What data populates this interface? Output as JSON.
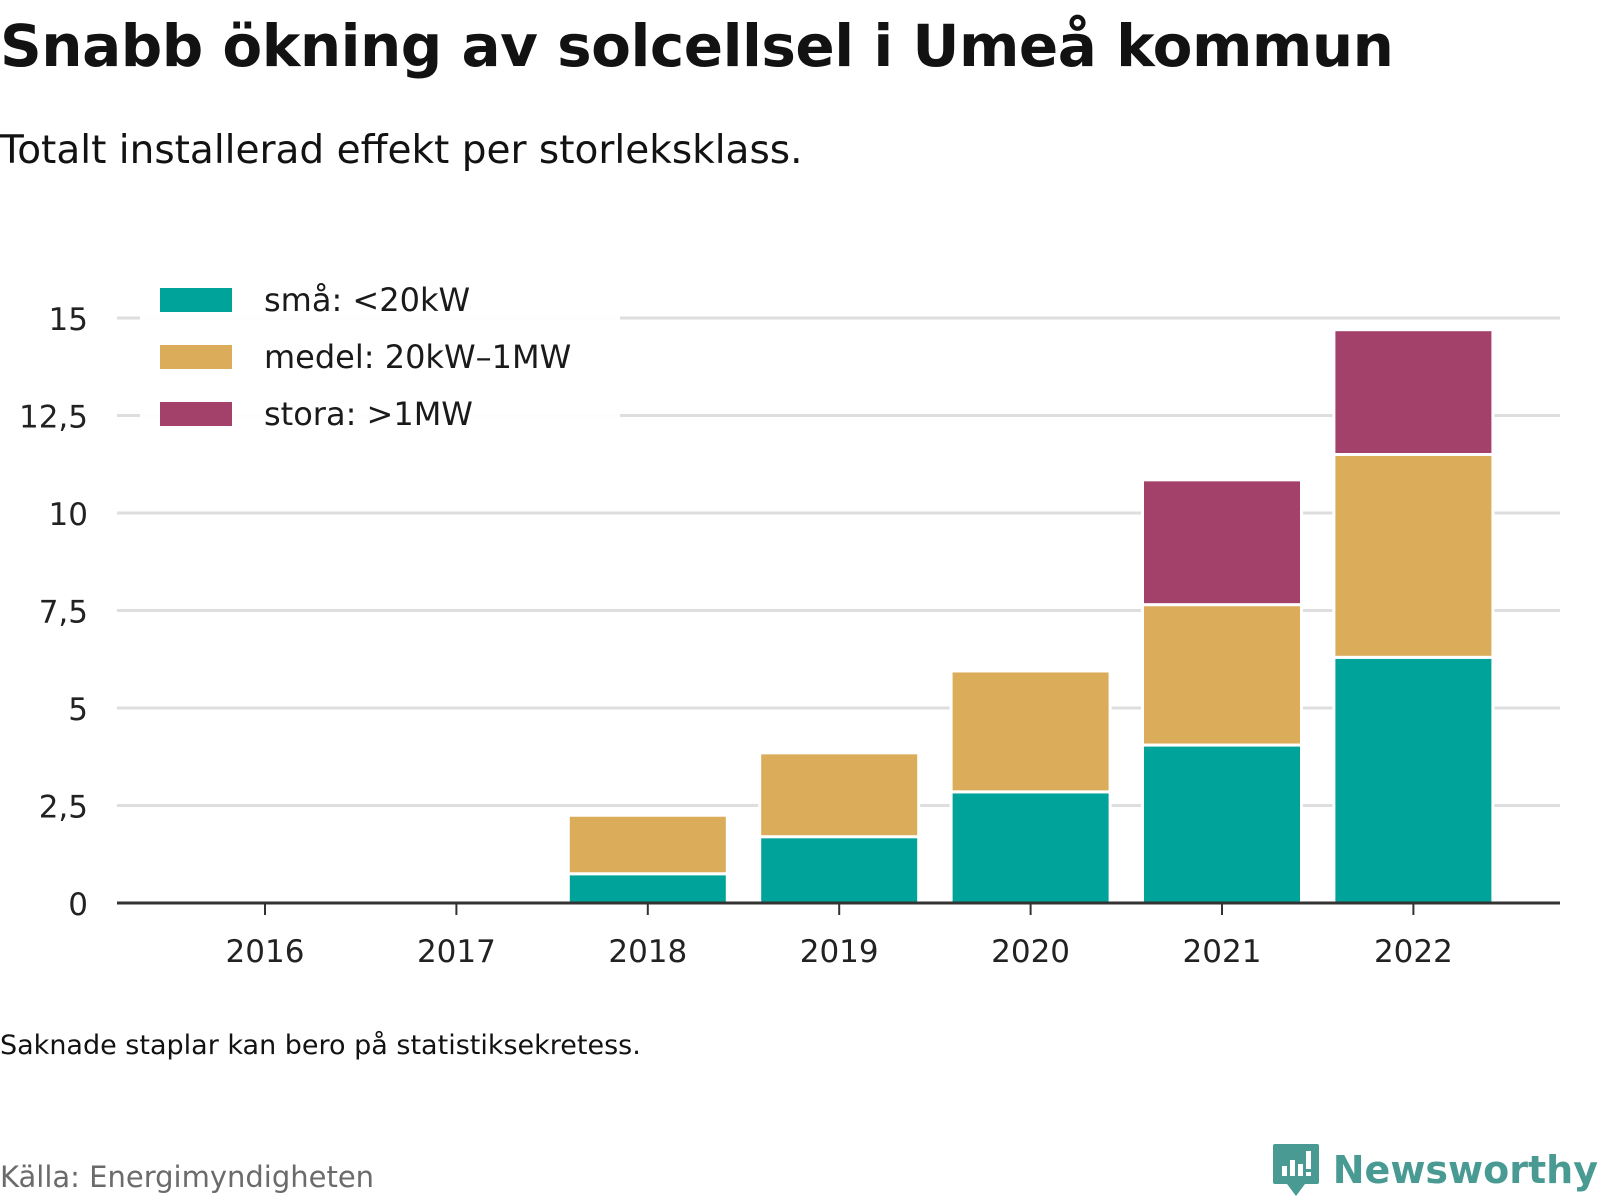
{
  "header": {
    "title": "Snabb ökning av solcellsel i Umeå kommun",
    "subtitle": "Totalt installerad effekt per storleksklass."
  },
  "footer": {
    "note": "Saknade staplar kan bero på statistiksekretess.",
    "source": "Källa: Energimyndigheten",
    "brand": "Newsworthy"
  },
  "colors": {
    "sma": "#00a39a",
    "medel": "#dbac5a",
    "stora": "#a3416a",
    "grid": "#dedede",
    "axis": "#333333",
    "brand": "#4a9a94"
  },
  "chart_data": {
    "type": "bar",
    "stacked": true,
    "title": "Snabb ökning av solcellsel i Umeå kommun",
    "subtitle": "Totalt installerad effekt per storleksklass.",
    "xlabel": "",
    "ylabel": "",
    "categories": [
      "2016",
      "2017",
      "2018",
      "2019",
      "2020",
      "2021",
      "2022"
    ],
    "series": [
      {
        "name": "små: <20kW",
        "color": "#00a39a",
        "values": [
          0,
          0,
          0.75,
          1.7,
          2.85,
          4.05,
          6.3
        ]
      },
      {
        "name": "medel: 20kW–1MW",
        "color": "#dbac5a",
        "values": [
          0,
          0,
          1.5,
          2.15,
          3.1,
          3.6,
          5.2
        ]
      },
      {
        "name": "stora: >1MW",
        "color": "#a3416a",
        "values": [
          0,
          0,
          0,
          0,
          0,
          3.2,
          3.2
        ]
      }
    ],
    "yticks": [
      0,
      2.5,
      5,
      7.5,
      10,
      12.5,
      15
    ],
    "ytick_labels": [
      "0",
      "2,5",
      "5",
      "7,5",
      "10",
      "12,5",
      "15"
    ],
    "ylim": [
      0,
      15.5
    ],
    "grid": true,
    "legend": "top-left"
  }
}
